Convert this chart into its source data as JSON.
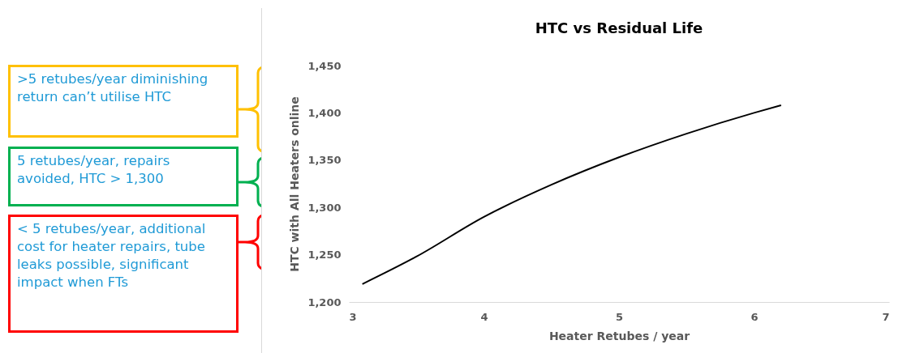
{
  "chart_data": {
    "type": "line",
    "title": "HTC vs Residual Life",
    "xlabel": "Heater Retubes / year",
    "ylabel": "HTC with All Heaters online",
    "x": [
      3.1,
      3.5,
      4,
      4.5,
      5,
      5.5,
      6,
      6.2
    ],
    "series": [
      {
        "color": "#000000",
        "values": [
          1219,
          1248,
          1290,
          1324,
          1353,
          1378,
          1400,
          1408
        ]
      }
    ],
    "xlim": [
      3,
      7
    ],
    "xticks": [
      3,
      4,
      5,
      6,
      7
    ],
    "ylim": [
      1200,
      1450
    ],
    "yticks": [
      {
        "value": 1200,
        "label": "1,200"
      },
      {
        "value": 1250,
        "label": "1,250"
      },
      {
        "value": 1300,
        "label": "1,300"
      },
      {
        "value": 1350,
        "label": "1,350"
      },
      {
        "value": 1400,
        "label": "1,400"
      },
      {
        "value": 1450,
        "label": "1,450"
      }
    ],
    "grid": false,
    "legend": false,
    "marker": "none",
    "line_style": "solid",
    "annotations": [
      ">5 retubes/year diminishing return can’t utilise HTC",
      "5 retubes/year, repairs avoided, HTC > 1,300",
      "< 5 retubes/year, additional cost for heater repairs, tube leaks possible, significant impact when FTs"
    ]
  }
}
